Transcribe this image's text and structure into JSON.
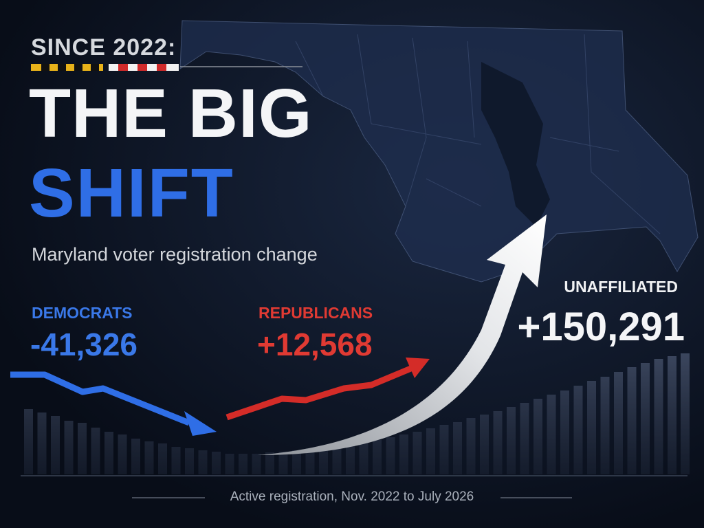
{
  "header": {
    "kicker": "SINCE 2022:",
    "title_line1": "THE BIG",
    "title_line2": "SHIFT",
    "subtitle": "Maryland voter registration change"
  },
  "parties": [
    {
      "name": "DEMOCRATS",
      "change": "-41,326"
    },
    {
      "name": "REPUBLICANS",
      "change": "+12,568"
    },
    {
      "name": "UNAFFILIATED",
      "change": "+150,291"
    }
  ],
  "footer": "Active registration, Nov. 2022 to July 2026"
}
